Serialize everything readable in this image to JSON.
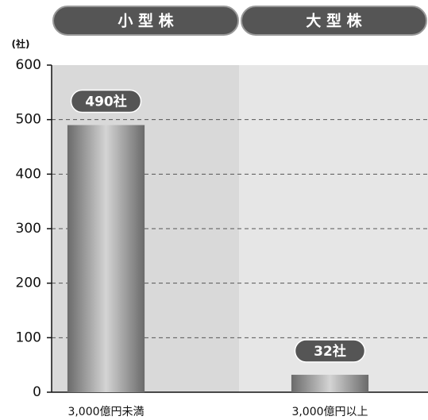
{
  "chart_data": {
    "type": "bar",
    "groups": [
      "小 型 株",
      "大 型 株"
    ],
    "y_label": "(社)",
    "categories": [
      "3,000億円未満",
      "3,000億円以上"
    ],
    "values": [
      490,
      32
    ],
    "value_labels": [
      "490社",
      "32社"
    ],
    "color": "#6a6a6a",
    "ylim": [
      0,
      600
    ],
    "yticks": [
      0,
      100,
      200,
      300,
      400,
      500,
      600
    ],
    "grid": true
  }
}
